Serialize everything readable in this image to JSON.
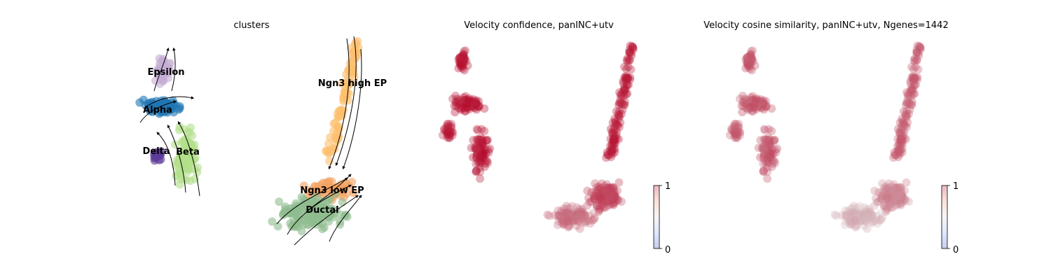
{
  "chart_data": [
    {
      "type": "scatter",
      "title": "clusters",
      "embedding": "umap",
      "streamlines": true,
      "clusters": [
        {
          "name": "Epsilon",
          "color": "#c4aed4"
        },
        {
          "name": "Alpha",
          "color": "#1f77b4"
        },
        {
          "name": "Delta",
          "color": "#5e3c99"
        },
        {
          "name": "Beta",
          "color": "#b2df8a"
        },
        {
          "name": "Ngn3 high EP",
          "color": "#fdbf6f"
        },
        {
          "name": "Ngn3 low EP",
          "color": "#f4a261"
        },
        {
          "name": "Ductal",
          "color": "#8fbc8f"
        }
      ]
    },
    {
      "type": "scatter",
      "title": "Velocity confidence, panINC+utv",
      "colorbar": {
        "min": 0,
        "max": 1,
        "ticks": [
          "0",
          "1"
        ],
        "colormap": "coolwarm"
      },
      "dominant_value": "high (near 1)"
    },
    {
      "type": "scatter",
      "title": "Velocity cosine similarity, panINC+utv, Ngenes=1442",
      "colorbar": {
        "min": 0,
        "max": 1,
        "ticks": [
          "0",
          "1"
        ],
        "colormap": "coolwarm"
      },
      "dominant_value": "high (near 1)"
    }
  ]
}
